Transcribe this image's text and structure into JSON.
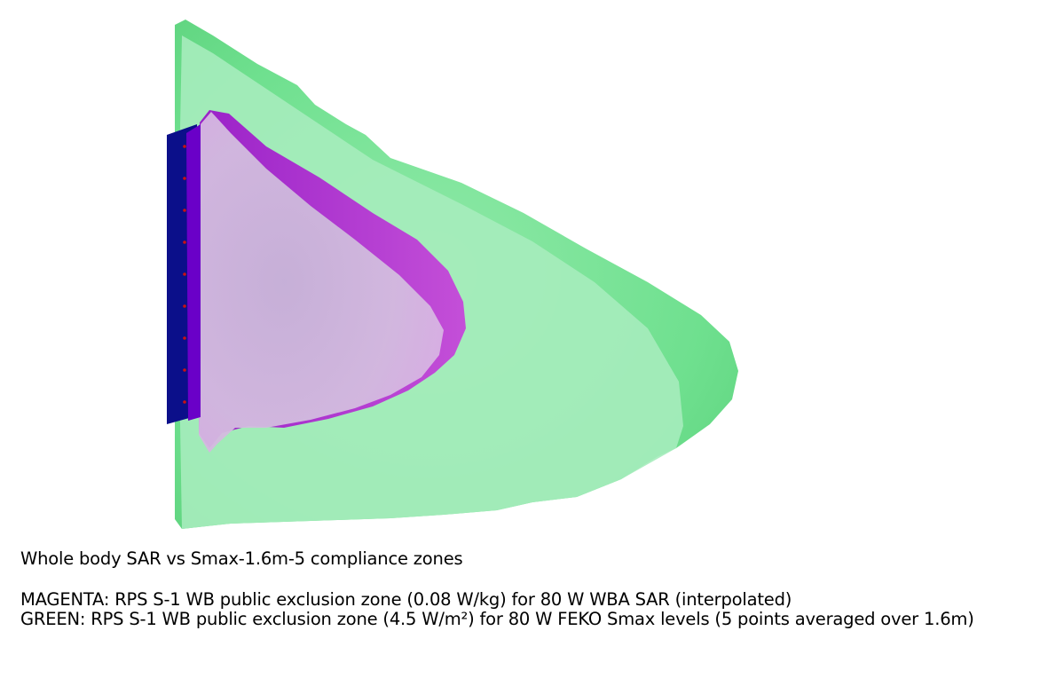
{
  "caption": {
    "title": "Whole body SAR vs Smax-1.6m-5 compliance zones",
    "magenta_line": "MAGENTA: RPS S-1 WB public exclusion zone (0.08 W/kg) for 80 W WBA SAR (interpolated)",
    "green_line": "GREEN: RPS S-1 WB public exclusion zone (4.5 W/m²) for 80 W FEKO Smax levels (5 points averaged over 1.6m)"
  },
  "colors": {
    "green_zone": "#6fe08f",
    "green_zone_light": "#a6ecbc",
    "magenta_zone": "#b338d6",
    "magenta_zone_light": "#d7b2e0",
    "antenna_panel": "#0b0f8a",
    "antenna_elements": "#cc1111"
  }
}
